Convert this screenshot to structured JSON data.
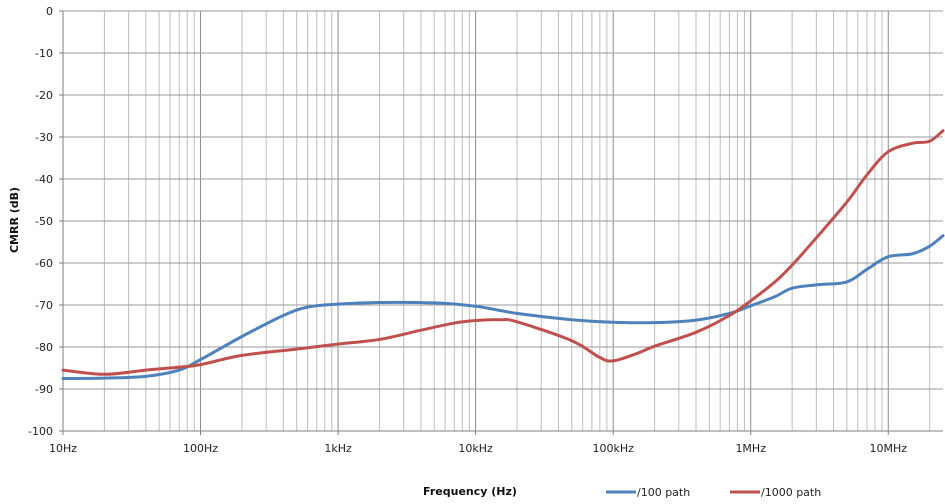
{
  "chart_data": {
    "type": "line",
    "title": "",
    "xlabel": "Frequency (Hz)",
    "ylabel": "CMRR (dB)",
    "x_scale": "log",
    "xlim": [
      10,
      25000000
    ],
    "ylim": [
      -100,
      0
    ],
    "grid": true,
    "legend_position": "bottom-right",
    "x_ticks": [
      {
        "value": 10,
        "label": "10Hz"
      },
      {
        "value": 100,
        "label": "100Hz"
      },
      {
        "value": 1000,
        "label": "1kHz"
      },
      {
        "value": 10000,
        "label": "10kHz"
      },
      {
        "value": 100000,
        "label": "100kHz"
      },
      {
        "value": 1000000,
        "label": "1MHz"
      },
      {
        "value": 10000000,
        "label": "10MHz"
      }
    ],
    "y_ticks": [
      0,
      -10,
      -20,
      -30,
      -40,
      -50,
      -60,
      -70,
      -80,
      -90,
      -100
    ],
    "series": [
      {
        "name": "/100 path",
        "color": "#4f81bd",
        "points": [
          [
            10,
            -87.5
          ],
          [
            20,
            -87.4
          ],
          [
            40,
            -87.0
          ],
          [
            70,
            -85.5
          ],
          [
            100,
            -83.0
          ],
          [
            200,
            -77.5
          ],
          [
            400,
            -72.5
          ],
          [
            600,
            -70.5
          ],
          [
            1000,
            -69.8
          ],
          [
            2000,
            -69.4
          ],
          [
            5000,
            -69.5
          ],
          [
            10000,
            -70.3
          ],
          [
            20000,
            -72.0
          ],
          [
            50000,
            -73.5
          ],
          [
            100000,
            -74.1
          ],
          [
            200000,
            -74.2
          ],
          [
            400000,
            -73.6
          ],
          [
            700000,
            -72.0
          ],
          [
            1000000,
            -70.2
          ],
          [
            1500000,
            -68.0
          ],
          [
            2000000,
            -66.0
          ],
          [
            3000000,
            -65.2
          ],
          [
            5000000,
            -64.5
          ],
          [
            7000000,
            -61.5
          ],
          [
            10000000,
            -58.5
          ],
          [
            15000000,
            -57.8
          ],
          [
            20000000,
            -56.0
          ],
          [
            25000000,
            -53.5
          ]
        ]
      },
      {
        "name": "/1000 path",
        "color": "#c0504d",
        "points": [
          [
            10,
            -85.5
          ],
          [
            20,
            -86.5
          ],
          [
            40,
            -85.5
          ],
          [
            70,
            -84.8
          ],
          [
            100,
            -84.2
          ],
          [
            200,
            -82.0
          ],
          [
            500,
            -80.5
          ],
          [
            1000,
            -79.3
          ],
          [
            2000,
            -78.2
          ],
          [
            4000,
            -76.0
          ],
          [
            7000,
            -74.3
          ],
          [
            10000,
            -73.7
          ],
          [
            15000,
            -73.5
          ],
          [
            20000,
            -74.0
          ],
          [
            50000,
            -78.5
          ],
          [
            80000,
            -82.5
          ],
          [
            100000,
            -83.3
          ],
          [
            150000,
            -81.5
          ],
          [
            200000,
            -79.8
          ],
          [
            400000,
            -76.5
          ],
          [
            700000,
            -72.5
          ],
          [
            1000000,
            -69.0
          ],
          [
            1500000,
            -64.5
          ],
          [
            2000000,
            -60.5
          ],
          [
            3000000,
            -54.0
          ],
          [
            5000000,
            -45.5
          ],
          [
            7000000,
            -39.0
          ],
          [
            10000000,
            -33.5
          ],
          [
            15000000,
            -31.5
          ],
          [
            20000000,
            -31.0
          ],
          [
            25000000,
            -28.5
          ]
        ]
      }
    ]
  }
}
